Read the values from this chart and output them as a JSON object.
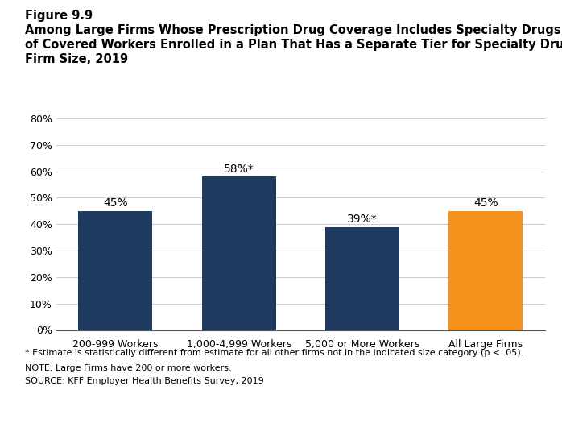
{
  "categories": [
    "200-999 Workers",
    "1,000-4,999 Workers",
    "5,000 or More Workers",
    "All Large Firms"
  ],
  "values": [
    45,
    58,
    39,
    45
  ],
  "bar_labels": [
    "45%",
    "58%*",
    "39%*",
    "45%"
  ],
  "bar_colors": [
    "#1e3a5f",
    "#1e3a5f",
    "#1e3a5f",
    "#f5921e"
  ],
  "ylim": [
    0,
    80
  ],
  "yticks": [
    0,
    10,
    20,
    30,
    40,
    50,
    60,
    70,
    80
  ],
  "ytick_labels": [
    "0%",
    "10%",
    "20%",
    "30%",
    "40%",
    "50%",
    "60%",
    "70%",
    "80%"
  ],
  "figure_label": "Figure 9.9",
  "title_line1": "Among Large Firms Whose Prescription Drug Coverage Includes Specialty Drugs, Percentage",
  "title_line2": "of Covered Workers Enrolled in a Plan That Has a Separate Tier for Specialty Drugs, by",
  "title_line3": "Firm Size, 2019",
  "footnote1": "* Estimate is statistically different from estimate for all other firms not in the indicated size category (p < .05).",
  "footnote2": "NOTE: Large Firms have 200 or more workers.",
  "footnote3": "SOURCE: KFF Employer Health Benefits Survey, 2019",
  "background_color": "#ffffff",
  "bar_label_fontsize": 10,
  "axis_label_fontsize": 9,
  "title_fontsize": 10.5,
  "figure_label_fontsize": 10.5,
  "footnote_fontsize": 8
}
